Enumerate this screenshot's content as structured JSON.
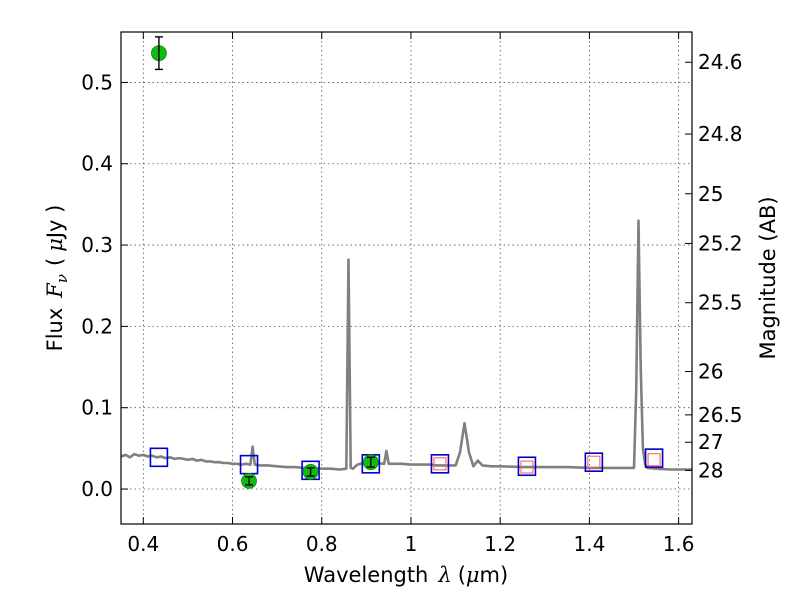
{
  "chart_data": {
    "type": "scatter",
    "xlabel": "Wavelength",
    "xlabel_symbol": "λ",
    "xlabel_unit_open": "(",
    "xlabel_unit_mu": "μ",
    "xlabel_unit_rest": "m)",
    "ylabel": "Flux",
    "ylabel_symbol": "F",
    "ylabel_subscript": "ν",
    "ylabel_unit_open": "(",
    "ylabel_unit_mu": "μ",
    "ylabel_unit_rest": "Jy )",
    "y2label": "Magnitude (AB)",
    "xlim": [
      0.35,
      1.63
    ],
    "ylim": [
      -0.043,
      0.562
    ],
    "grid": true,
    "colors": {
      "spectrum": "#808080",
      "observed": "#11bb11",
      "model_box": "#0000cc",
      "model_inner": "#ff5555",
      "error": "#000000"
    },
    "x_ticks": [
      {
        "value": 0.4,
        "label": "0.4"
      },
      {
        "value": 0.6,
        "label": "0.6"
      },
      {
        "value": 0.8,
        "label": "0.8"
      },
      {
        "value": 1.0,
        "label": "1"
      },
      {
        "value": 1.2,
        "label": "1.2"
      },
      {
        "value": 1.4,
        "label": "1.4"
      },
      {
        "value": 1.6,
        "label": "1.6"
      }
    ],
    "y_ticks": [
      {
        "value": 0.0,
        "label": "0.0"
      },
      {
        "value": 0.1,
        "label": "0.1"
      },
      {
        "value": 0.2,
        "label": "0.2"
      },
      {
        "value": 0.3,
        "label": "0.3"
      },
      {
        "value": 0.4,
        "label": "0.4"
      },
      {
        "value": 0.5,
        "label": "0.5"
      }
    ],
    "y2_ticks": [
      {
        "mag": 24.6,
        "label": "24.6"
      },
      {
        "mag": 24.8,
        "label": "24.8"
      },
      {
        "mag": 25.0,
        "label": "25"
      },
      {
        "mag": 25.2,
        "label": "25.2"
      },
      {
        "mag": 25.5,
        "label": "25.5"
      },
      {
        "mag": 26.0,
        "label": "26"
      },
      {
        "mag": 26.5,
        "label": "26.5"
      },
      {
        "mag": 27.0,
        "label": "27"
      },
      {
        "mag": 28.0,
        "label": "28"
      }
    ],
    "spectrum": {
      "x": [
        0.35,
        0.36,
        0.37,
        0.38,
        0.39,
        0.4,
        0.41,
        0.42,
        0.43,
        0.44,
        0.45,
        0.46,
        0.47,
        0.48,
        0.49,
        0.5,
        0.51,
        0.52,
        0.53,
        0.54,
        0.55,
        0.56,
        0.57,
        0.58,
        0.59,
        0.6,
        0.61,
        0.62,
        0.63,
        0.64,
        0.645,
        0.65,
        0.66,
        0.68,
        0.7,
        0.72,
        0.74,
        0.76,
        0.78,
        0.8,
        0.82,
        0.84,
        0.855,
        0.86,
        0.865,
        0.87,
        0.88,
        0.9,
        0.92,
        0.94,
        0.945,
        0.95,
        0.955,
        0.96,
        0.98,
        1.0,
        1.02,
        1.04,
        1.06,
        1.08,
        1.1,
        1.11,
        1.12,
        1.13,
        1.14,
        1.15,
        1.16,
        1.18,
        1.2,
        1.25,
        1.3,
        1.35,
        1.4,
        1.45,
        1.5,
        1.505,
        1.51,
        1.515,
        1.52,
        1.525,
        1.53,
        1.55,
        1.58,
        1.6,
        1.63
      ],
      "y": [
        0.04,
        0.042,
        0.039,
        0.043,
        0.041,
        0.042,
        0.04,
        0.041,
        0.039,
        0.04,
        0.038,
        0.039,
        0.037,
        0.038,
        0.037,
        0.036,
        0.037,
        0.035,
        0.036,
        0.034,
        0.034,
        0.033,
        0.033,
        0.032,
        0.032,
        0.031,
        0.031,
        0.03,
        0.031,
        0.03,
        0.052,
        0.03,
        0.029,
        0.029,
        0.028,
        0.027,
        0.027,
        0.026,
        0.026,
        0.025,
        0.025,
        0.024,
        0.025,
        0.282,
        0.026,
        0.025,
        0.03,
        0.033,
        0.032,
        0.031,
        0.047,
        0.031,
        0.031,
        0.031,
        0.031,
        0.03,
        0.03,
        0.03,
        0.029,
        0.029,
        0.029,
        0.045,
        0.081,
        0.045,
        0.028,
        0.035,
        0.029,
        0.028,
        0.028,
        0.027,
        0.027,
        0.027,
        0.026,
        0.026,
        0.026,
        0.12,
        0.33,
        0.15,
        0.05,
        0.03,
        0.026,
        0.025,
        0.024,
        0.024,
        0.024
      ]
    },
    "observed": [
      {
        "x": 0.435,
        "y": 0.536,
        "err": 0.02
      },
      {
        "x": 0.637,
        "y": 0.01,
        "err": 0.005
      },
      {
        "x": 0.775,
        "y": 0.021,
        "err": 0.005
      },
      {
        "x": 0.91,
        "y": 0.033,
        "err": 0.006
      }
    ],
    "model_photometry": [
      {
        "x": 0.435,
        "y": 0.039
      },
      {
        "x": 0.637,
        "y": 0.03
      },
      {
        "x": 0.775,
        "y": 0.023
      },
      {
        "x": 0.91,
        "y": 0.031
      },
      {
        "x": 1.065,
        "y": 0.031
      },
      {
        "x": 1.26,
        "y": 0.028
      },
      {
        "x": 1.41,
        "y": 0.033
      },
      {
        "x": 1.545,
        "y": 0.038
      }
    ],
    "upper_limits": [
      {
        "x": 1.065,
        "y": 0.031
      },
      {
        "x": 1.26,
        "y": 0.027
      },
      {
        "x": 1.41,
        "y": 0.033
      },
      {
        "x": 1.545,
        "y": 0.036
      }
    ]
  }
}
